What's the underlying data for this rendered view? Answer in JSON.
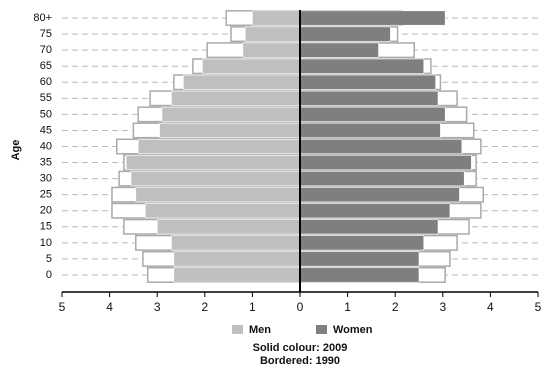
{
  "chart_data": {
    "type": "pyramid",
    "ylabel": "Age",
    "categories": [
      "0",
      "5",
      "10",
      "15",
      "20",
      "25",
      "30",
      "35",
      "40",
      "45",
      "50",
      "55",
      "60",
      "65",
      "70",
      "75",
      "80+"
    ],
    "series": [
      {
        "name": "Men",
        "color": "#bfbfbf",
        "side": "left",
        "values": [
          2.65,
          2.65,
          2.7,
          3.0,
          3.25,
          3.45,
          3.55,
          3.65,
          3.4,
          2.95,
          2.9,
          2.7,
          2.45,
          2.05,
          1.2,
          1.15,
          1.0
        ],
        "values_1990": [
          3.2,
          3.3,
          3.45,
          3.7,
          3.95,
          3.95,
          3.8,
          3.7,
          3.85,
          3.5,
          3.4,
          3.15,
          2.65,
          2.25,
          1.95,
          1.45,
          1.55
        ]
      },
      {
        "name": "Women",
        "color": "#7f7f7f",
        "side": "right",
        "values": [
          2.5,
          2.5,
          2.6,
          2.9,
          3.15,
          3.35,
          3.45,
          3.6,
          3.4,
          2.95,
          3.05,
          2.9,
          2.85,
          2.6,
          1.65,
          1.9,
          3.05
        ],
        "values_1990": [
          3.05,
          3.15,
          3.3,
          3.55,
          3.8,
          3.85,
          3.7,
          3.7,
          3.8,
          3.65,
          3.5,
          3.3,
          2.95,
          2.75,
          2.4,
          2.05,
          2.15
        ]
      }
    ],
    "xlim": [
      -5,
      5
    ],
    "xticks": [
      {
        "value": -5,
        "label": "5"
      },
      {
        "value": -4,
        "label": "4"
      },
      {
        "value": -3,
        "label": "3"
      },
      {
        "value": -2,
        "label": "2"
      },
      {
        "value": -1,
        "label": "1"
      },
      0,
      1,
      2,
      3,
      4,
      5
    ],
    "notes": [
      "Solid colour: 2009",
      "Bordered: 1990"
    ],
    "grid": true
  }
}
